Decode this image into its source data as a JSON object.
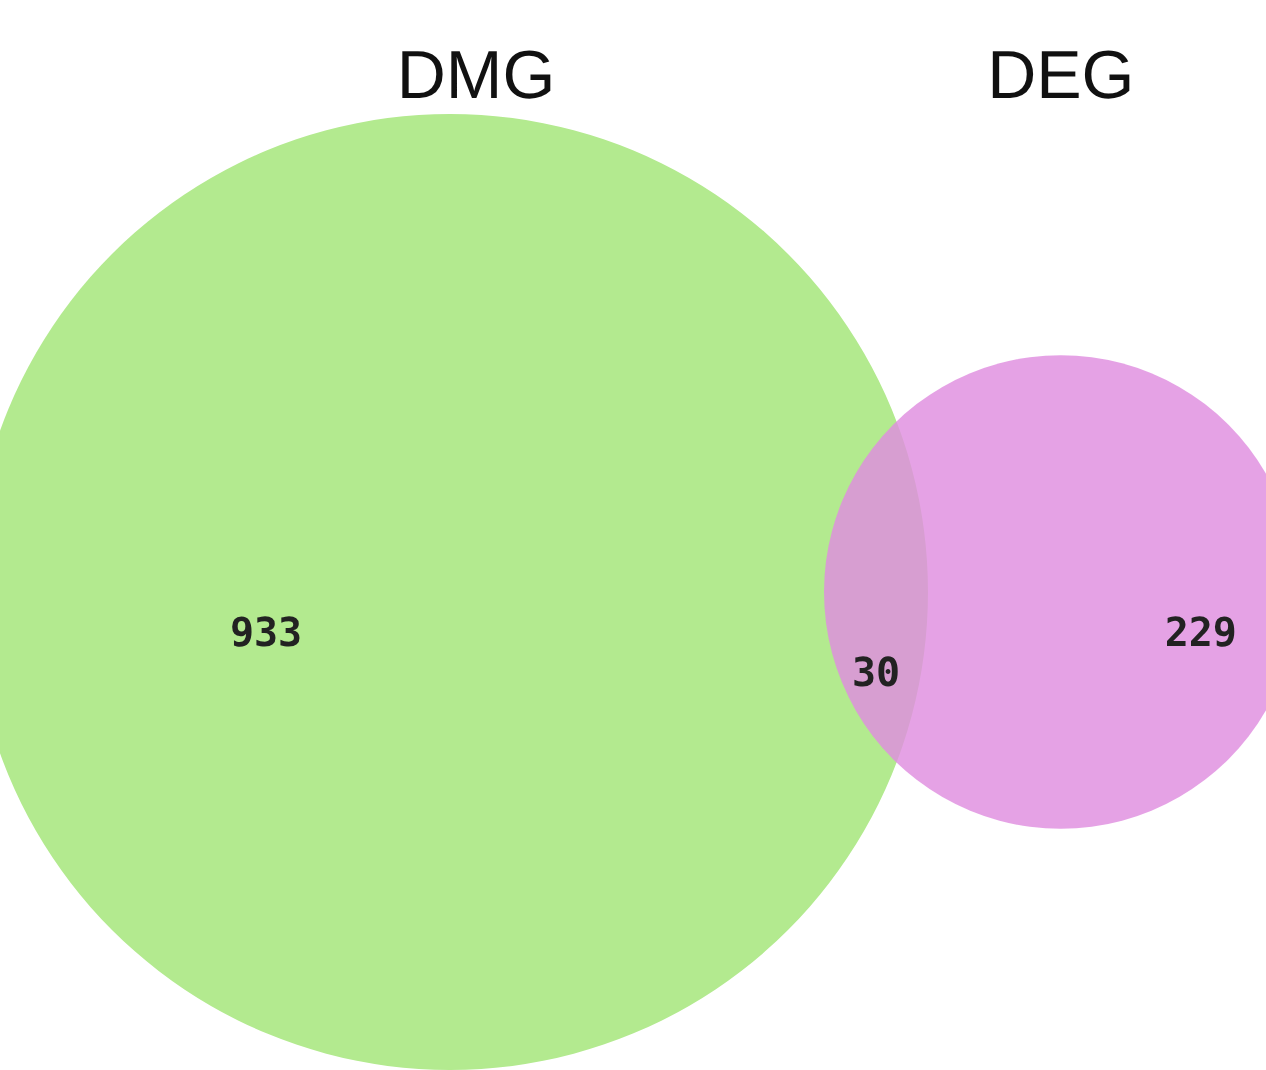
{
  "chart_data": {
    "type": "other",
    "categories": [
      "DMG",
      "DEG"
    ],
    "values": [
      933,
      229
    ],
    "colors": [
      "#b3ea8f",
      "#df8ddf"
    ],
    "data_labels": true,
    "annotations": [
      "30"
    ]
  }
}
